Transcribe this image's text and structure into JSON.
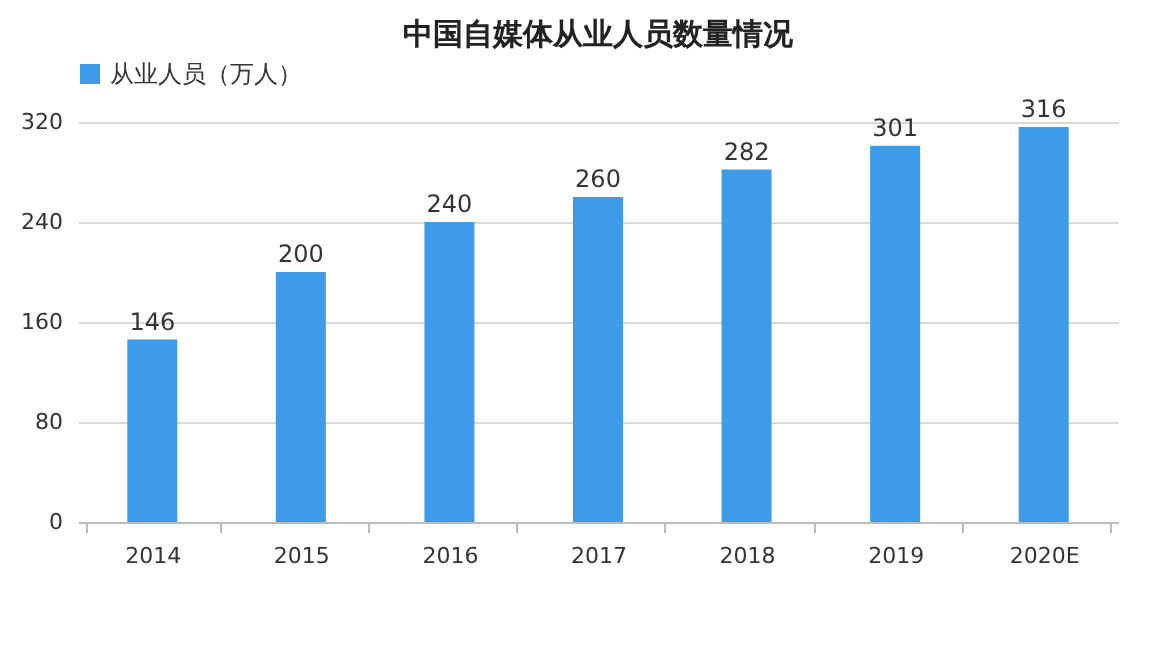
{
  "chart_data": {
    "type": "bar",
    "title": "中国自媒体从业人员数量情况",
    "categories": [
      "2014",
      "2015",
      "2016",
      "2017",
      "2018",
      "2019",
      "2020E"
    ],
    "series": [
      {
        "name": "从业人员（万人）",
        "color": "#3d9be9",
        "values": [
          146,
          200,
          240,
          260,
          282,
          301,
          316
        ]
      }
    ],
    "ylim": [
      0,
      320
    ],
    "yticks": [
      0,
      80,
      160,
      240,
      320
    ],
    "grid": "y",
    "legend": "top",
    "data_labels": true
  }
}
